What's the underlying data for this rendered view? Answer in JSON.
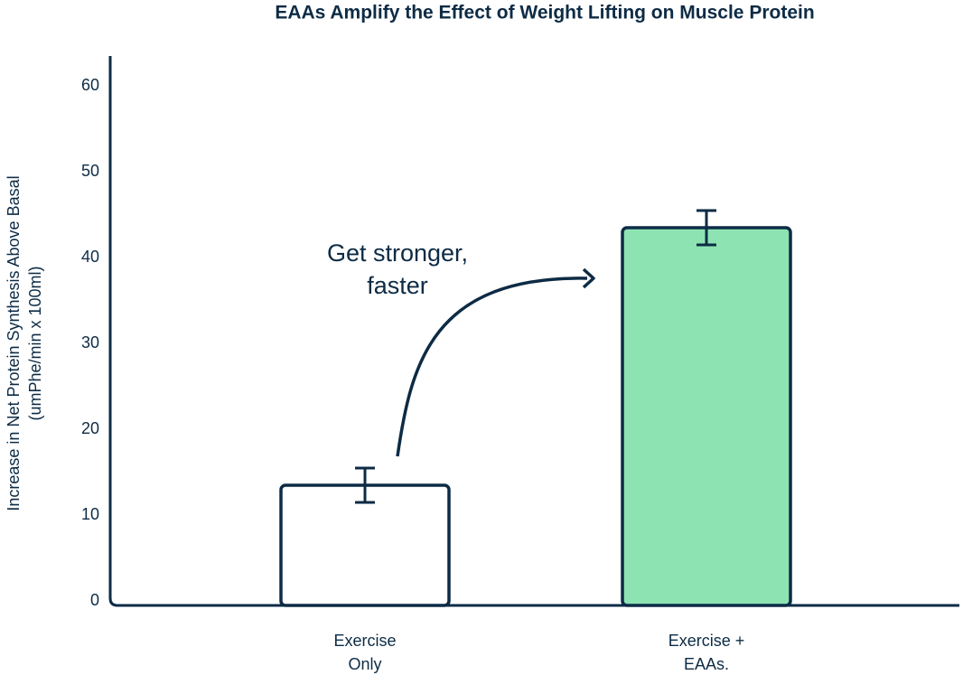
{
  "chart_data": {
    "type": "bar",
    "title": "EAAs Amplify the Effect of Weight Lifting on Muscle Protein",
    "ylabel": [
      "Increase in Net Protein Synthesis Above Basal",
      "(umPhe/min x 100ml)"
    ],
    "categories": [
      "Exercise Only",
      "Exercise + EAAs."
    ],
    "values": [
      14,
      44
    ],
    "errors": [
      2,
      2
    ],
    "colors": [
      "#ffffff",
      "#8de4b2"
    ],
    "edge_color": "#0d2b45",
    "annotation": "Get stronger, faster",
    "ylim": [
      0,
      64
    ],
    "yticks": [
      0,
      10,
      20,
      30,
      40,
      50,
      60
    ],
    "grid": false
  }
}
